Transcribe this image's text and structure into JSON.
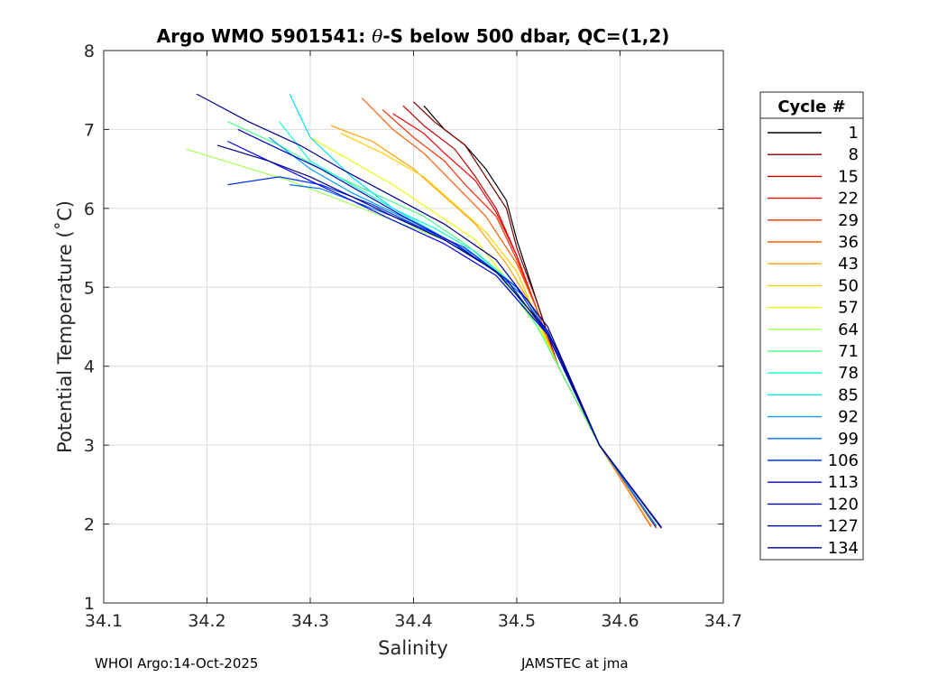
{
  "chart_data": {
    "type": "line",
    "title_prefix": "Argo WMO 5901541: ",
    "title_symbol": "θ",
    "title_suffix": "-S below 500 dbar,  QC=(1,2)",
    "xlabel": "Salinity",
    "ylabel": "Potential Temperature (˚C)",
    "xlim": [
      34.1,
      34.7
    ],
    "ylim": [
      1,
      8
    ],
    "xticks": [
      "34.1",
      "34.2",
      "34.3",
      "34.4",
      "34.5",
      "34.6",
      "34.7"
    ],
    "yticks": [
      "1",
      "2",
      "3",
      "4",
      "5",
      "6",
      "7",
      "8"
    ],
    "grid": true,
    "legend_title": "Cycle #",
    "legend_position": "right-outside",
    "series": [
      {
        "name": "1",
        "color": "#000000",
        "x": [
          34.41,
          34.43,
          34.45,
          34.47,
          34.49,
          34.5,
          34.52,
          34.54,
          34.58,
          34.64
        ],
        "y": [
          7.3,
          7.0,
          6.8,
          6.5,
          6.1,
          5.6,
          4.8,
          4.0,
          3.0,
          1.95
        ]
      },
      {
        "name": "8",
        "color": "#800000",
        "x": [
          34.4,
          34.42,
          34.45,
          34.47,
          34.49,
          34.5,
          34.52,
          34.54,
          34.58,
          34.64
        ],
        "y": [
          7.35,
          7.1,
          6.8,
          6.4,
          6.0,
          5.5,
          4.8,
          4.0,
          3.0,
          1.95
        ]
      },
      {
        "name": "15",
        "color": "#c00000",
        "x": [
          34.39,
          34.41,
          34.44,
          34.46,
          34.48,
          34.5,
          34.52,
          34.54,
          34.58,
          34.635
        ],
        "y": [
          7.3,
          7.05,
          6.75,
          6.4,
          6.0,
          5.4,
          4.7,
          4.0,
          3.0,
          1.95
        ]
      },
      {
        "name": "22",
        "color": "#ff0000",
        "x": [
          34.38,
          34.41,
          34.43,
          34.46,
          34.48,
          34.5,
          34.52,
          34.54,
          34.58,
          34.63
        ],
        "y": [
          7.2,
          6.95,
          6.7,
          6.35,
          5.95,
          5.4,
          4.7,
          4.0,
          3.0,
          1.97
        ]
      },
      {
        "name": "29",
        "color": "#ff3000",
        "x": [
          34.37,
          34.4,
          34.43,
          34.45,
          34.48,
          34.5,
          34.52,
          34.54,
          34.58,
          34.63
        ],
        "y": [
          7.25,
          6.9,
          6.6,
          6.3,
          5.9,
          5.35,
          4.7,
          4.0,
          3.0,
          1.97
        ]
      },
      {
        "name": "36",
        "color": "#ff6000",
        "x": [
          34.35,
          34.38,
          34.41,
          34.44,
          34.47,
          34.5,
          34.52,
          34.54,
          34.58,
          34.63
        ],
        "y": [
          7.4,
          7.0,
          6.7,
          6.3,
          5.9,
          5.3,
          4.7,
          4.0,
          3.0,
          1.98
        ]
      },
      {
        "name": "43",
        "color": "#ffa000",
        "x": [
          34.32,
          34.36,
          34.4,
          34.43,
          34.46,
          34.49,
          34.52,
          34.54,
          34.58,
          34.63
        ],
        "y": [
          7.05,
          6.85,
          6.5,
          6.15,
          5.8,
          5.3,
          4.65,
          4.0,
          3.0,
          1.98
        ]
      },
      {
        "name": "50",
        "color": "#ffd000",
        "x": [
          34.33,
          34.37,
          34.41,
          34.44,
          34.47,
          34.5,
          34.52,
          34.54,
          34.58,
          34.635
        ],
        "y": [
          6.95,
          6.7,
          6.4,
          6.05,
          5.7,
          5.2,
          4.6,
          4.0,
          3.0,
          1.97
        ]
      },
      {
        "name": "57",
        "color": "#e8ff10",
        "x": [
          34.3,
          34.34,
          34.38,
          34.42,
          34.46,
          34.49,
          34.52,
          34.54,
          34.58,
          34.635
        ],
        "y": [
          6.9,
          6.6,
          6.3,
          5.95,
          5.6,
          5.1,
          4.55,
          4.0,
          3.0,
          1.97
        ]
      },
      {
        "name": "64",
        "color": "#a0ff50",
        "x": [
          34.18,
          34.23,
          34.28,
          34.33,
          34.38,
          34.43,
          34.48,
          34.52,
          34.58,
          34.635
        ],
        "y": [
          6.75,
          6.55,
          6.35,
          6.1,
          5.85,
          5.6,
          5.2,
          4.5,
          3.0,
          1.97
        ]
      },
      {
        "name": "71",
        "color": "#50ff90",
        "x": [
          34.22,
          34.27,
          34.31,
          34.36,
          34.41,
          34.45,
          34.49,
          34.52,
          34.58,
          34.635
        ],
        "y": [
          7.1,
          6.8,
          6.5,
          6.2,
          5.9,
          5.55,
          5.1,
          4.5,
          3.0,
          1.97
        ]
      },
      {
        "name": "78",
        "color": "#10ffd0",
        "x": [
          34.27,
          34.3,
          34.34,
          34.38,
          34.42,
          34.46,
          34.5,
          34.53,
          34.58,
          34.635
        ],
        "y": [
          7.1,
          6.6,
          6.3,
          6.0,
          5.75,
          5.45,
          5.0,
          4.4,
          3.0,
          1.97
        ]
      },
      {
        "name": "85",
        "color": "#00e0ff",
        "x": [
          34.28,
          34.3,
          34.34,
          34.38,
          34.42,
          34.46,
          34.5,
          34.53,
          34.58,
          34.635
        ],
        "y": [
          7.45,
          6.9,
          6.4,
          6.0,
          5.7,
          5.4,
          5.0,
          4.4,
          3.0,
          1.98
        ]
      },
      {
        "name": "92",
        "color": "#00a0ff",
        "x": [
          34.26,
          34.3,
          34.34,
          34.38,
          34.42,
          34.46,
          34.5,
          34.53,
          34.58,
          34.635
        ],
        "y": [
          6.9,
          6.5,
          6.2,
          5.95,
          5.7,
          5.4,
          5.0,
          4.4,
          3.0,
          1.98
        ]
      },
      {
        "name": "99",
        "color": "#0070ff",
        "x": [
          34.28,
          34.31,
          34.35,
          34.39,
          34.43,
          34.47,
          34.51,
          34.54,
          34.58,
          34.635
        ],
        "y": [
          6.3,
          6.25,
          6.05,
          5.85,
          5.6,
          5.3,
          4.85,
          4.2,
          3.0,
          1.97
        ]
      },
      {
        "name": "106",
        "color": "#0030ff",
        "x": [
          34.22,
          34.27,
          34.31,
          34.36,
          34.4,
          34.45,
          34.5,
          34.54,
          34.58,
          34.64
        ],
        "y": [
          6.3,
          6.4,
          6.3,
          6.05,
          5.8,
          5.5,
          5.0,
          4.2,
          3.0,
          1.96
        ]
      },
      {
        "name": "113",
        "color": "#0000ff",
        "x": [
          34.22,
          34.26,
          34.3,
          34.34,
          34.38,
          34.43,
          34.48,
          34.53,
          34.58,
          34.64
        ],
        "y": [
          6.85,
          6.6,
          6.35,
          6.1,
          5.85,
          5.55,
          5.15,
          4.4,
          3.0,
          1.96
        ]
      },
      {
        "name": "120",
        "color": "#0000c0",
        "x": [
          34.23,
          34.27,
          34.31,
          34.35,
          34.39,
          34.44,
          34.49,
          34.53,
          34.58,
          34.64
        ],
        "y": [
          7.0,
          6.75,
          6.5,
          6.2,
          5.9,
          5.55,
          5.1,
          4.4,
          3.0,
          1.96
        ]
      },
      {
        "name": "127",
        "color": "#000090",
        "x": [
          34.19,
          34.24,
          34.29,
          34.33,
          34.38,
          34.43,
          34.48,
          34.53,
          34.58,
          34.64
        ],
        "y": [
          7.45,
          7.1,
          6.8,
          6.5,
          6.15,
          5.8,
          5.35,
          4.5,
          3.0,
          1.95
        ]
      },
      {
        "name": "134",
        "color": "#000080",
        "x": [
          34.21,
          34.26,
          34.3,
          34.34,
          34.38,
          34.43,
          34.48,
          34.53,
          34.58,
          34.64
        ],
        "y": [
          6.8,
          6.6,
          6.4,
          6.15,
          5.9,
          5.6,
          5.2,
          4.45,
          3.0,
          1.95
        ]
      }
    ]
  },
  "footer": {
    "left": "WHOI Argo:14-Oct-2025",
    "right": "JAMSTEC at jma"
  }
}
